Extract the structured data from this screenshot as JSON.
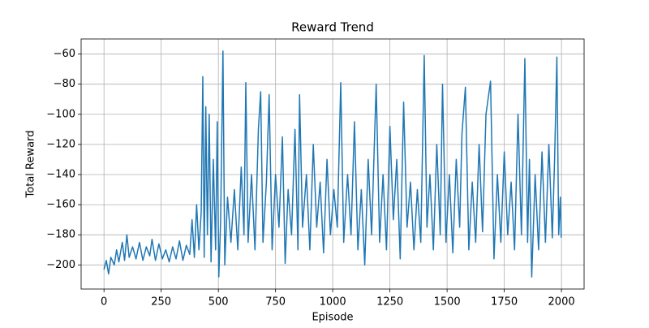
{
  "chart_data": {
    "type": "line",
    "title": "Reward Trend",
    "x_label": "Episode",
    "y_label": "Total Reward",
    "color": "#1f77b4",
    "grid": true,
    "xlim": [
      -100,
      2099
    ],
    "ylim": [
      -216,
      -50
    ],
    "xticks": [
      0,
      250,
      500,
      750,
      1000,
      1250,
      1500,
      1750,
      2000
    ],
    "yticks": [
      {
        "value": -200,
        "label": "−200"
      },
      {
        "value": -180,
        "label": "−180"
      },
      {
        "value": -160,
        "label": "−160"
      },
      {
        "value": -140,
        "label": "−140"
      },
      {
        "value": -120,
        "label": "−120"
      },
      {
        "value": -100,
        "label": "−100"
      },
      {
        "value": -80,
        "label": "−80"
      },
      {
        "value": -60,
        "label": "−60"
      }
    ],
    "x": [
      0,
      10,
      20,
      30,
      45,
      55,
      65,
      80,
      90,
      100,
      110,
      125,
      140,
      155,
      170,
      185,
      200,
      210,
      225,
      240,
      255,
      270,
      285,
      300,
      315,
      330,
      345,
      360,
      375,
      385,
      395,
      405,
      415,
      425,
      432,
      438,
      445,
      452,
      460,
      468,
      478,
      488,
      495,
      502,
      510,
      520,
      528,
      540,
      555,
      570,
      585,
      600,
      612,
      620,
      630,
      645,
      660,
      675,
      685,
      695,
      710,
      722,
      735,
      750,
      765,
      780,
      792,
      805,
      820,
      835,
      848,
      855,
      868,
      885,
      900,
      915,
      930,
      945,
      960,
      975,
      990,
      1005,
      1020,
      1035,
      1048,
      1065,
      1080,
      1095,
      1110,
      1125,
      1140,
      1155,
      1170,
      1190,
      1205,
      1220,
      1235,
      1250,
      1265,
      1280,
      1295,
      1310,
      1325,
      1340,
      1355,
      1370,
      1385,
      1400,
      1412,
      1425,
      1440,
      1455,
      1470,
      1480,
      1495,
      1510,
      1525,
      1540,
      1555,
      1565,
      1580,
      1595,
      1610,
      1625,
      1640,
      1655,
      1670,
      1690,
      1705,
      1720,
      1735,
      1750,
      1765,
      1780,
      1795,
      1810,
      1825,
      1840,
      1852,
      1860,
      1870,
      1885,
      1900,
      1915,
      1930,
      1945,
      1960,
      1970,
      1980,
      1988,
      1995,
      1999
    ],
    "values": [
      -203,
      -197,
      -206,
      -195,
      -200,
      -190,
      -198,
      -185,
      -197,
      -180,
      -195,
      -188,
      -196,
      -185,
      -197,
      -188,
      -194,
      -183,
      -197,
      -186,
      -196,
      -190,
      -198,
      -188,
      -196,
      -184,
      -197,
      -187,
      -193,
      -170,
      -195,
      -160,
      -190,
      -165,
      -75,
      -195,
      -95,
      -180,
      -100,
      -198,
      -130,
      -190,
      -105,
      -208,
      -170,
      -58,
      -200,
      -155,
      -185,
      -150,
      -190,
      -135,
      -180,
      -79,
      -185,
      -140,
      -190,
      -110,
      -85,
      -185,
      -145,
      -87,
      -190,
      -140,
      -175,
      -115,
      -199,
      -150,
      -180,
      -110,
      -190,
      -87,
      -175,
      -140,
      -190,
      -120,
      -175,
      -145,
      -192,
      -130,
      -180,
      -150,
      -175,
      -79,
      -185,
      -140,
      -180,
      -105,
      -190,
      -150,
      -200,
      -130,
      -180,
      -80,
      -185,
      -140,
      -190,
      -108,
      -170,
      -130,
      -196,
      -92,
      -175,
      -145,
      -190,
      -150,
      -185,
      -61,
      -175,
      -140,
      -190,
      -120,
      -180,
      -80,
      -185,
      -140,
      -192,
      -130,
      -175,
      -113,
      -82,
      -190,
      -145,
      -185,
      -120,
      -178,
      -100,
      -78,
      -196,
      -140,
      -185,
      -125,
      -180,
      -145,
      -190,
      -100,
      -180,
      -63,
      -185,
      -130,
      -208,
      -140,
      -190,
      -125,
      -185,
      -120,
      -182,
      -130,
      -62,
      -180,
      -155,
      -182
    ]
  }
}
